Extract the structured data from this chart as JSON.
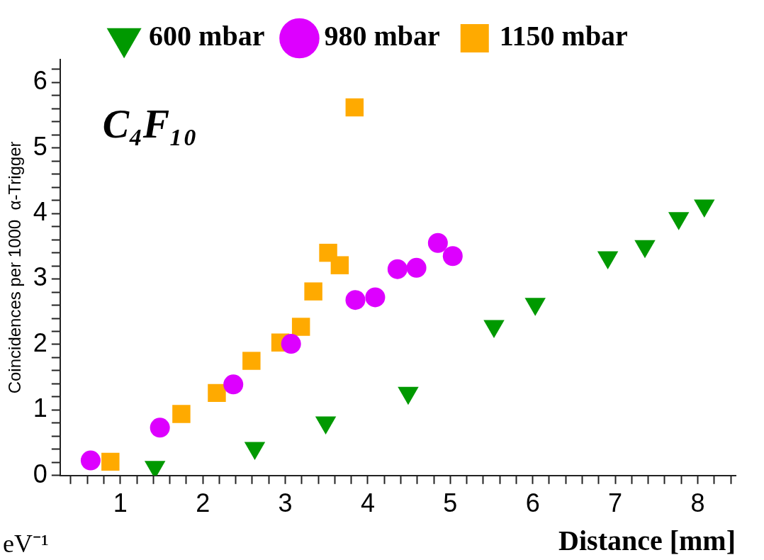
{
  "chart_data": {
    "type": "scatter",
    "xlabel": "Distance [mm]",
    "ylabel": "Coincidences per 1000  α-Trigger",
    "annotations": [
      "C₄F₁₀",
      "eV⁻¹"
    ],
    "xlim": [
      0.27,
      8.46
    ],
    "ylim": [
      0,
      6.35
    ],
    "xticks": [
      {
        "value": 0.4,
        "label": null
      },
      {
        "value": 0.6,
        "label": null
      },
      {
        "value": 0.8,
        "label": null
      },
      1,
      {
        "value": 1.2,
        "label": null
      },
      {
        "value": 1.4,
        "label": null
      },
      {
        "value": 1.6,
        "label": null
      },
      {
        "value": 1.8,
        "label": null
      },
      2,
      {
        "value": 2.2,
        "label": null
      },
      {
        "value": 2.4,
        "label": null
      },
      {
        "value": 2.6,
        "label": null
      },
      {
        "value": 2.8,
        "label": null
      },
      3,
      {
        "value": 3.2,
        "label": null
      },
      {
        "value": 3.4,
        "label": null
      },
      {
        "value": 3.6,
        "label": null
      },
      {
        "value": 3.8,
        "label": null
      },
      4,
      {
        "value": 4.2,
        "label": null
      },
      {
        "value": 4.4,
        "label": null
      },
      {
        "value": 4.6,
        "label": null
      },
      {
        "value": 4.8,
        "label": null
      },
      5,
      {
        "value": 5.2,
        "label": null
      },
      {
        "value": 5.4,
        "label": null
      },
      {
        "value": 5.6,
        "label": null
      },
      {
        "value": 5.8,
        "label": null
      },
      6,
      {
        "value": 6.2,
        "label": null
      },
      {
        "value": 6.4,
        "label": null
      },
      {
        "value": 6.6,
        "label": null
      },
      {
        "value": 6.8,
        "label": null
      },
      7,
      {
        "value": 7.2,
        "label": null
      },
      {
        "value": 7.4,
        "label": null
      },
      {
        "value": 7.6,
        "label": null
      },
      {
        "value": 7.8,
        "label": null
      },
      8,
      {
        "value": 8.2,
        "label": null
      },
      {
        "value": 8.4,
        "label": null
      }
    ],
    "yticks": [
      0,
      {
        "value": 0.2,
        "label": null
      },
      {
        "value": 0.4,
        "label": null
      },
      {
        "value": 0.6,
        "label": null
      },
      {
        "value": 0.8,
        "label": null
      },
      1,
      {
        "value": 1.2,
        "label": null
      },
      {
        "value": 1.4,
        "label": null
      },
      {
        "value": 1.6,
        "label": null
      },
      {
        "value": 1.8,
        "label": null
      },
      2,
      {
        "value": 2.2,
        "label": null
      },
      {
        "value": 2.4,
        "label": null
      },
      {
        "value": 2.6,
        "label": null
      },
      {
        "value": 2.8,
        "label": null
      },
      3,
      {
        "value": 3.2,
        "label": null
      },
      {
        "value": 3.4,
        "label": null
      },
      {
        "value": 3.6,
        "label": null
      },
      {
        "value": 3.8,
        "label": null
      },
      4,
      {
        "value": 4.2,
        "label": null
      },
      {
        "value": 4.4,
        "label": null
      },
      {
        "value": 4.6,
        "label": null
      },
      {
        "value": 4.8,
        "label": null
      },
      5,
      {
        "value": 5.2,
        "label": null
      },
      {
        "value": 5.4,
        "label": null
      },
      {
        "value": 5.6,
        "label": null
      },
      {
        "value": 5.8,
        "label": null
      },
      6,
      {
        "value": 6.2,
        "label": null
      }
    ],
    "grid": false,
    "legend": "top",
    "series": [
      {
        "name": "600 mbar",
        "color": "#009900",
        "marker": "triangle",
        "x": [
          1.42,
          2.63,
          3.49,
          4.49,
          5.53,
          6.03,
          6.91,
          7.36,
          7.77,
          8.08
        ],
        "values": [
          0.13,
          0.42,
          0.81,
          1.26,
          2.28,
          2.62,
          3.33,
          3.5,
          3.93,
          4.12
        ]
      },
      {
        "name": "980 mbar",
        "color": "#dd00ff",
        "marker": "circle",
        "x": [
          0.64,
          1.48,
          2.37,
          3.07,
          3.85,
          4.09,
          4.36,
          4.59,
          4.85,
          5.03
        ],
        "values": [
          0.23,
          0.73,
          1.39,
          2.01,
          2.68,
          2.72,
          3.15,
          3.17,
          3.55,
          3.35
        ]
      },
      {
        "name": "1150 mbar",
        "color": "#ffaa00",
        "marker": "square",
        "x": [
          0.88,
          1.74,
          2.17,
          2.59,
          2.94,
          3.19,
          3.34,
          3.52,
          3.66,
          3.84
        ],
        "values": [
          0.21,
          0.94,
          1.26,
          1.75,
          2.03,
          2.27,
          2.81,
          3.4,
          3.21,
          5.62
        ]
      }
    ]
  }
}
